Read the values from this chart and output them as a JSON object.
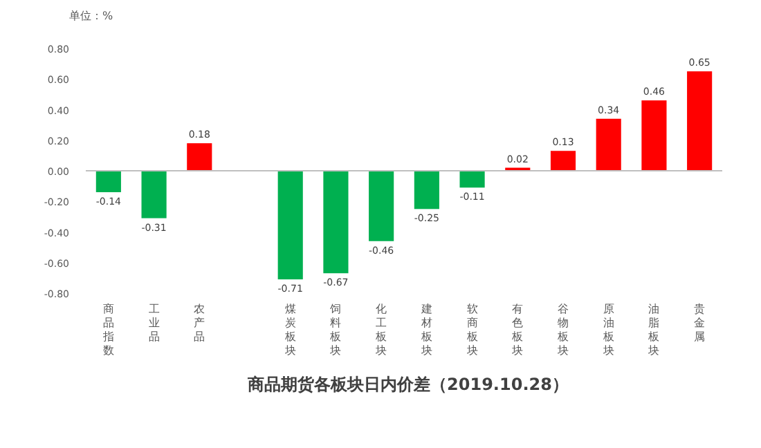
{
  "chart_data": {
    "type": "bar",
    "title": "商品期货各板块日内价差（2019.10.28）",
    "ylabel": "单位：%",
    "categories": [
      "商品指数",
      "工业品",
      "农产品",
      null,
      "煤炭板块",
      "饲料板块",
      "化工板块",
      "建材板块",
      "软商板块",
      "有色板块",
      "谷物板块",
      "原油板块",
      "油脂板块",
      "贵金属"
    ],
    "values": [
      -0.14,
      -0.31,
      0.18,
      null,
      -0.71,
      -0.67,
      -0.46,
      -0.25,
      -0.11,
      0.02,
      0.13,
      0.34,
      0.46,
      0.65
    ],
    "colors": [
      "#00b050",
      "#00b050",
      "#ff0000",
      null,
      "#00b050",
      "#00b050",
      "#00b050",
      "#00b050",
      "#00b050",
      "#ff0000",
      "#ff0000",
      "#ff0000",
      "#ff0000",
      "#ff0000"
    ],
    "ylim": [
      -0.8,
      0.8
    ],
    "yticks": [
      {
        "value": -0.8,
        "label": "-0.80"
      },
      {
        "value": -0.6,
        "label": "-0.60"
      },
      {
        "value": -0.4,
        "label": "-0.40"
      },
      {
        "value": -0.2,
        "label": "-0.20"
      },
      {
        "value": 0,
        "label": "0.00"
      },
      {
        "value": 0.2,
        "label": "0.20"
      },
      {
        "value": 0.4,
        "label": "0.40"
      },
      {
        "value": 0.6,
        "label": "0.60"
      },
      {
        "value": 0.8,
        "label": "0.80"
      }
    ],
    "data_labels": true
  }
}
